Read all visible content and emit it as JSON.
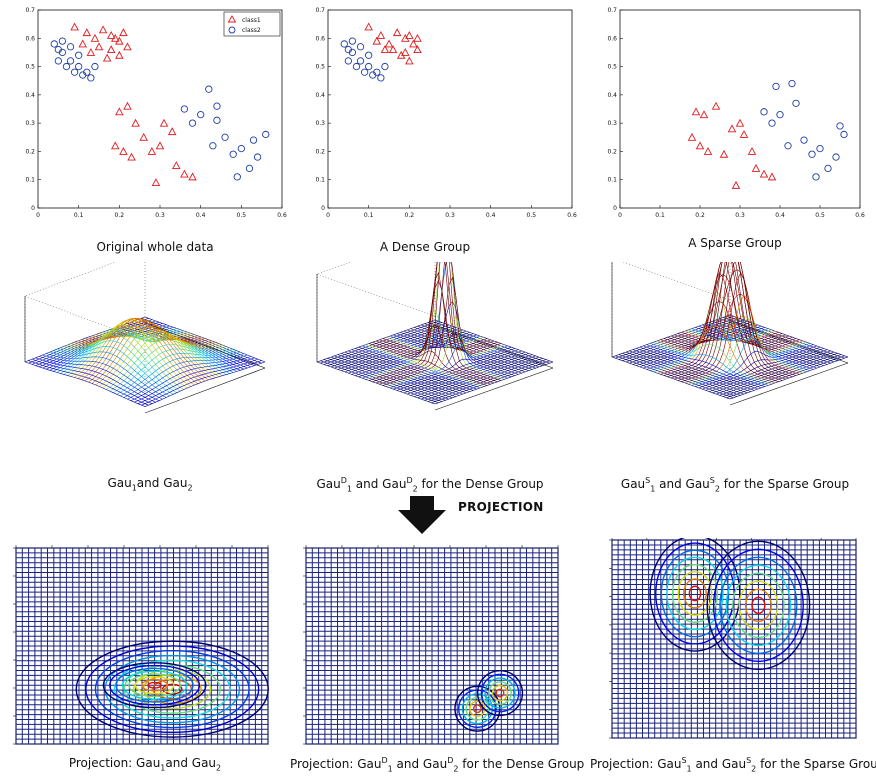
{
  "captions": {
    "row1": [
      "Original whole data",
      "A Dense Group",
      "A Sparse Group"
    ],
    "row2": [
      {
        "pre": "Gau",
        "s1": "1",
        "mid": "and Gau",
        "s2": "2",
        "post": ""
      },
      {
        "pre": "Gau",
        "s1": "1",
        "sup1": "D",
        "mid": " and Gau",
        "s2": "2",
        "sup2": "D",
        "post": " for the Dense Group"
      },
      {
        "pre": "Gau",
        "s1": "1",
        "sup1": "S",
        "mid": " and Gau",
        "s2": "2",
        "sup2": "S",
        "post": " for the Sparse Group"
      }
    ],
    "row3": [
      {
        "pre": "Projection: Gau",
        "s1": "1",
        "mid": "and Gau",
        "s2": "2",
        "post": ""
      },
      {
        "pre": "Projection: Gau",
        "s1": "1",
        "sup1": "D",
        "mid": " and Gau",
        "s2": "2",
        "sup2": "D",
        "post": " for the Dense Group"
      },
      {
        "pre": "Projection: Gau",
        "s1": "1",
        "sup1": "S",
        "mid": " and Gau",
        "s2": "2",
        "sup2": "S",
        "post": " for the Sparse Group"
      }
    ]
  },
  "projection_label": "PROJECTION",
  "colors": {
    "class1": "#e31a1c",
    "class2": "#1f3fa8",
    "grid": "#1a237e"
  },
  "chart_data": [
    {
      "type": "scatter",
      "title": "Original whole data",
      "xlim": [
        0,
        0.6
      ],
      "ylim": [
        0,
        0.7
      ],
      "xticks": [
        "0",
        "0.1",
        "0.2",
        "0.3",
        "0.4",
        "0.5",
        "0.6"
      ],
      "yticks": [
        "0",
        "0.1",
        "0.2",
        "0.3",
        "0.4",
        "0.5",
        "0.6",
        "0.7"
      ],
      "legend": [
        "class1",
        "class2"
      ],
      "series": [
        {
          "name": "class1",
          "marker": "triangle",
          "points": [
            [
              0.09,
              0.64
            ],
            [
              0.12,
              0.62
            ],
            [
              0.14,
              0.6
            ],
            [
              0.16,
              0.63
            ],
            [
              0.18,
              0.61
            ],
            [
              0.2,
              0.59
            ],
            [
              0.15,
              0.57
            ],
            [
              0.18,
              0.56
            ],
            [
              0.2,
              0.54
            ],
            [
              0.22,
              0.57
            ],
            [
              0.11,
              0.58
            ],
            [
              0.13,
              0.55
            ],
            [
              0.17,
              0.53
            ],
            [
              0.19,
              0.6
            ],
            [
              0.21,
              0.62
            ],
            [
              0.2,
              0.34
            ],
            [
              0.22,
              0.36
            ],
            [
              0.24,
              0.3
            ],
            [
              0.19,
              0.22
            ],
            [
              0.21,
              0.2
            ],
            [
              0.23,
              0.18
            ],
            [
              0.26,
              0.25
            ],
            [
              0.28,
              0.2
            ],
            [
              0.3,
              0.22
            ],
            [
              0.31,
              0.3
            ],
            [
              0.33,
              0.27
            ],
            [
              0.29,
              0.09
            ],
            [
              0.34,
              0.15
            ],
            [
              0.36,
              0.12
            ],
            [
              0.38,
              0.11
            ]
          ]
        },
        {
          "name": "class2",
          "marker": "circle",
          "points": [
            [
              0.04,
              0.58
            ],
            [
              0.06,
              0.55
            ],
            [
              0.08,
              0.52
            ],
            [
              0.1,
              0.5
            ],
            [
              0.12,
              0.48
            ],
            [
              0.14,
              0.5
            ],
            [
              0.06,
              0.59
            ],
            [
              0.08,
              0.57
            ],
            [
              0.1,
              0.54
            ],
            [
              0.05,
              0.52
            ],
            [
              0.07,
              0.5
            ],
            [
              0.09,
              0.48
            ],
            [
              0.11,
              0.47
            ],
            [
              0.13,
              0.46
            ],
            [
              0.05,
              0.56
            ],
            [
              0.36,
              0.35
            ],
            [
              0.38,
              0.3
            ],
            [
              0.4,
              0.33
            ],
            [
              0.42,
              0.42
            ],
            [
              0.43,
              0.22
            ],
            [
              0.44,
              0.36
            ],
            [
              0.46,
              0.25
            ],
            [
              0.48,
              0.19
            ],
            [
              0.5,
              0.21
            ],
            [
              0.52,
              0.14
            ],
            [
              0.54,
              0.18
            ],
            [
              0.56,
              0.26
            ],
            [
              0.49,
              0.11
            ],
            [
              0.53,
              0.24
            ],
            [
              0.44,
              0.31
            ]
          ]
        }
      ]
    },
    {
      "type": "scatter",
      "title": "A Dense Group",
      "xlim": [
        0,
        0.6
      ],
      "ylim": [
        0,
        0.7
      ],
      "xticks": [
        "0",
        "0.1",
        "0.2",
        "0.3",
        "0.4",
        "0.5",
        "0.6"
      ],
      "yticks": [
        "0",
        "0.1",
        "0.2",
        "0.3",
        "0.4",
        "0.5",
        "0.6",
        "0.7"
      ],
      "series": [
        {
          "name": "class1",
          "marker": "triangle",
          "points": [
            [
              0.1,
              0.64
            ],
            [
              0.13,
              0.61
            ],
            [
              0.15,
              0.58
            ],
            [
              0.17,
              0.62
            ],
            [
              0.19,
              0.6
            ],
            [
              0.21,
              0.58
            ],
            [
              0.16,
              0.56
            ],
            [
              0.18,
              0.54
            ],
            [
              0.2,
              0.52
            ],
            [
              0.22,
              0.56
            ],
            [
              0.12,
              0.59
            ],
            [
              0.14,
              0.56
            ],
            [
              0.19,
              0.55
            ],
            [
              0.2,
              0.61
            ],
            [
              0.22,
              0.6
            ]
          ]
        },
        {
          "name": "class2",
          "marker": "circle",
          "points": [
            [
              0.04,
              0.58
            ],
            [
              0.06,
              0.55
            ],
            [
              0.08,
              0.52
            ],
            [
              0.1,
              0.5
            ],
            [
              0.12,
              0.48
            ],
            [
              0.14,
              0.5
            ],
            [
              0.06,
              0.59
            ],
            [
              0.08,
              0.57
            ],
            [
              0.1,
              0.54
            ],
            [
              0.05,
              0.52
            ],
            [
              0.07,
              0.5
            ],
            [
              0.09,
              0.48
            ],
            [
              0.11,
              0.47
            ],
            [
              0.13,
              0.46
            ],
            [
              0.05,
              0.56
            ]
          ]
        }
      ]
    },
    {
      "type": "scatter",
      "title": "A Sparse Group",
      "xlim": [
        0,
        0.6
      ],
      "ylim": [
        0,
        0.7
      ],
      "xticks": [
        "0",
        "0.1",
        "0.2",
        "0.3",
        "0.4",
        "0.5",
        "0.6"
      ],
      "yticks": [
        "0",
        "0.1",
        "0.2",
        "0.3",
        "0.4",
        "0.5",
        "0.6",
        "0.7"
      ],
      "series": [
        {
          "name": "class1",
          "marker": "triangle",
          "points": [
            [
              0.19,
              0.34
            ],
            [
              0.21,
              0.33
            ],
            [
              0.24,
              0.36
            ],
            [
              0.18,
              0.25
            ],
            [
              0.2,
              0.22
            ],
            [
              0.22,
              0.2
            ],
            [
              0.26,
              0.19
            ],
            [
              0.28,
              0.28
            ],
            [
              0.3,
              0.3
            ],
            [
              0.31,
              0.26
            ],
            [
              0.33,
              0.2
            ],
            [
              0.29,
              0.08
            ],
            [
              0.34,
              0.14
            ],
            [
              0.36,
              0.12
            ],
            [
              0.38,
              0.11
            ]
          ]
        },
        {
          "name": "class2",
          "marker": "circle",
          "points": [
            [
              0.36,
              0.34
            ],
            [
              0.38,
              0.3
            ],
            [
              0.4,
              0.33
            ],
            [
              0.39,
              0.43
            ],
            [
              0.43,
              0.44
            ],
            [
              0.42,
              0.22
            ],
            [
              0.44,
              0.37
            ],
            [
              0.46,
              0.24
            ],
            [
              0.48,
              0.19
            ],
            [
              0.5,
              0.21
            ],
            [
              0.52,
              0.14
            ],
            [
              0.54,
              0.18
            ],
            [
              0.56,
              0.26
            ],
            [
              0.49,
              0.11
            ],
            [
              0.55,
              0.29
            ]
          ]
        }
      ]
    }
  ]
}
